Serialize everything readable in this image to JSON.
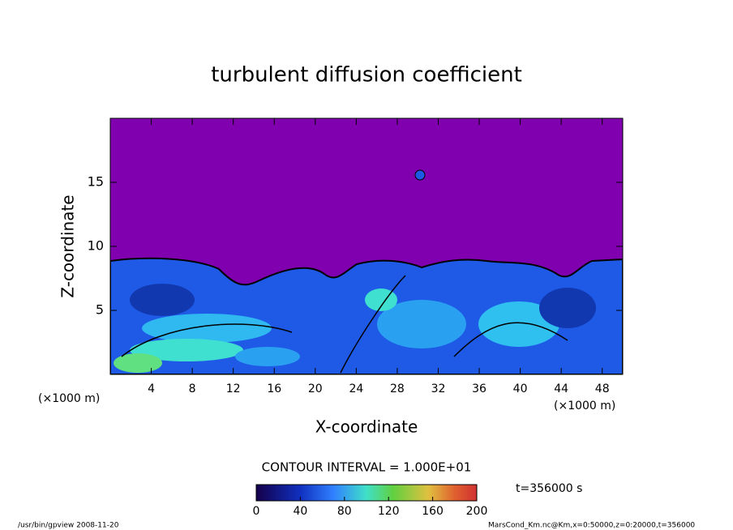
{
  "chart_data": {
    "type": "contour",
    "title": "turbulent diffusion coefficient",
    "x_label": "X-coordinate",
    "y_label": "Z-coordinate",
    "x_unit_label": "(×1000 m)",
    "y_unit_label": "(×1000 m)",
    "xlim": [
      0,
      50
    ],
    "ylim": [
      0,
      20
    ],
    "xticks": [
      4,
      8,
      12,
      16,
      20,
      24,
      28,
      32,
      36,
      40,
      44,
      48
    ],
    "yticks": [
      5,
      10,
      15
    ],
    "contour_interval_label": "CONTOUR INTERVAL = 1.000E+01",
    "colorbar": {
      "lim": [
        0,
        200
      ],
      "ticks": [
        0,
        40,
        80,
        120,
        160,
        200
      ]
    },
    "time_label": "t=356000 s",
    "footer_left": "/usr/bin/gpview  2008-11-20",
    "footer_right": "MarsCond_Km.nc@Km,x=0:50000,z=0:20000,t=356000"
  }
}
